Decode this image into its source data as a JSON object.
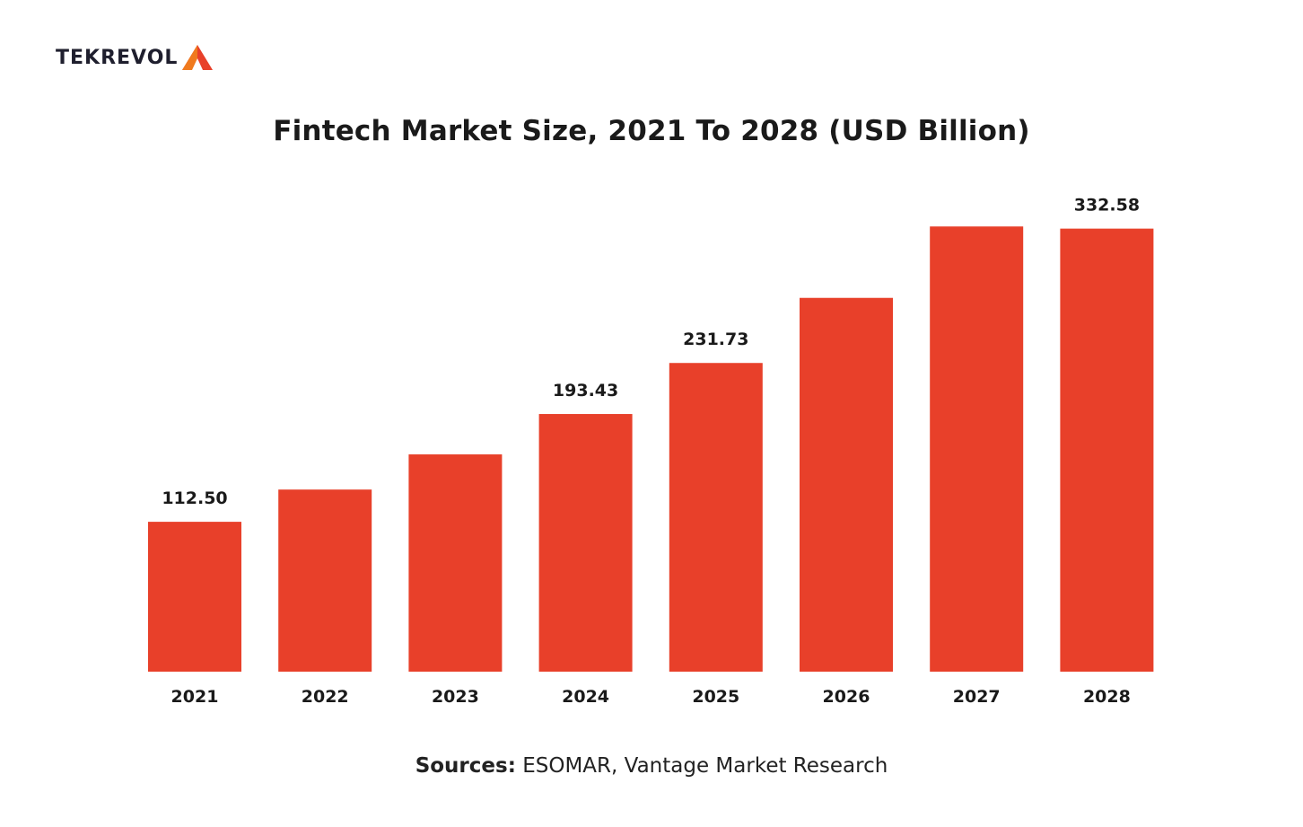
{
  "brand": {
    "logo_text": "TEKREVOL",
    "accent": "#e8402a"
  },
  "title": "Fintech Market Size, 2021 To 2028 (USD Billion)",
  "source": {
    "label": "Sources:",
    "text": "ESOMAR, Vantage Market Research"
  },
  "chart_data": {
    "type": "bar",
    "title": "Fintech Market Size, 2021 To 2028 (USD Billion)",
    "xlabel": "",
    "ylabel": "",
    "categories": [
      "2021",
      "2022",
      "2023",
      "2024",
      "2025",
      "2026",
      "2027",
      "2028"
    ],
    "values": [
      112.5,
      136.7,
      163.1,
      193.43,
      231.73,
      280.6,
      334.2,
      332.58
    ],
    "value_labels": [
      "112.50",
      "",
      "",
      "193.43",
      "231.73",
      "",
      "",
      "332.58"
    ],
    "ylim": [
      0,
      400
    ],
    "bar_color": "#e8402a",
    "grid": false,
    "legend": "none"
  }
}
